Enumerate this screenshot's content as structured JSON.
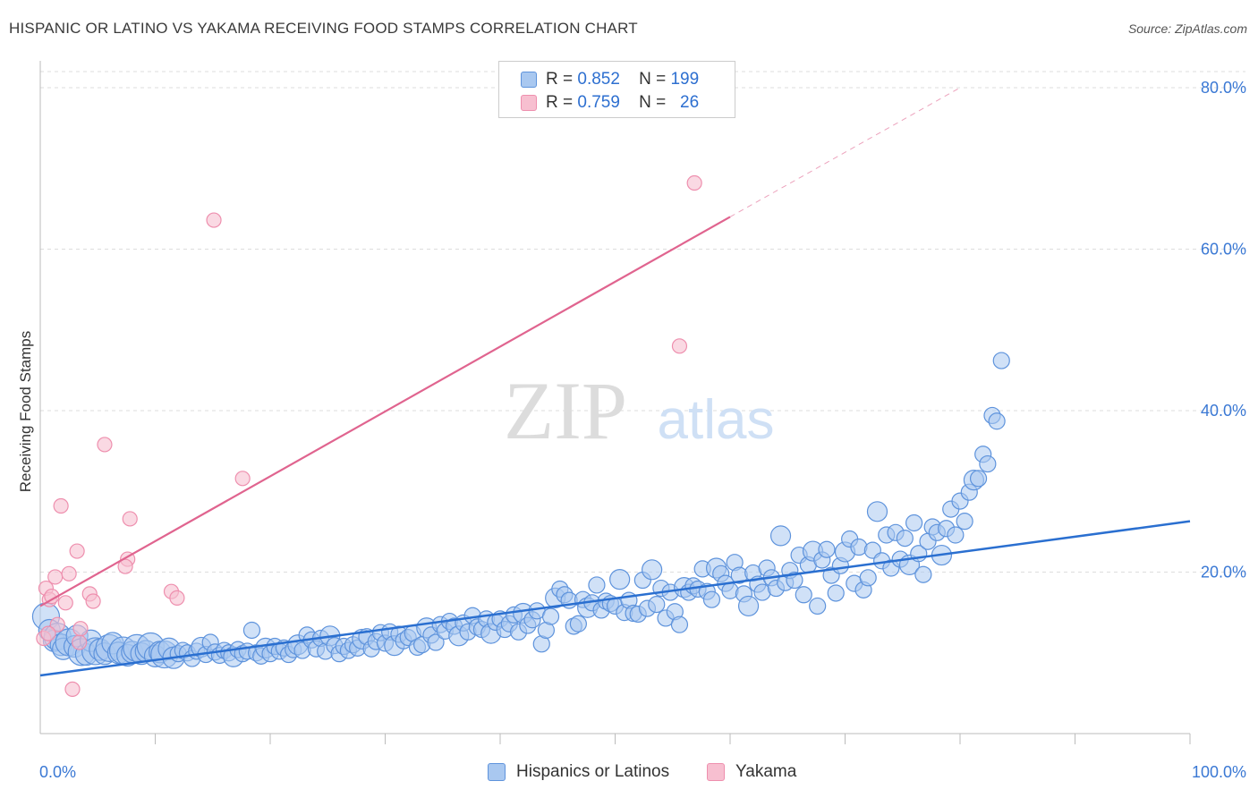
{
  "title": "HISPANIC OR LATINO VS YAKAMA RECEIVING FOOD STAMPS CORRELATION CHART",
  "source": "Source: ZipAtlas.com",
  "watermark": {
    "zip": "ZIP",
    "atlas": "atlas"
  },
  "legend_top": [
    {
      "r_label": "R =",
      "r_value": "0.852",
      "n_label": "N =",
      "n_value": "199"
    },
    {
      "r_label": "R =",
      "r_value": "0.759",
      "n_label": "N =",
      "n_value": "26"
    }
  ],
  "legend_bottom": [
    {
      "label": "Hispanics or Latinos"
    },
    {
      "label": "Yakama"
    }
  ],
  "colors": {
    "blue_fill": "#a9c8f0",
    "blue_stroke": "#5e93dc",
    "blue_line": "#2a6fd0",
    "pink_fill": "#f7bfd0",
    "pink_stroke": "#ee8fae",
    "pink_line": "#e0648f",
    "axis_text": "#3a78d4",
    "grid": "#dddddd"
  },
  "chart_data": {
    "type": "scatter",
    "title": "HISPANIC OR LATINO VS YAKAMA RECEIVING FOOD STAMPS CORRELATION CHART",
    "xlabel": "",
    "ylabel": "Receiving Food Stamps",
    "xlim": [
      0,
      100
    ],
    "ylim": [
      0,
      82
    ],
    "x_tick_labels": [
      "0.0%",
      "100.0%"
    ],
    "y_ticks": [
      20,
      40,
      60,
      80
    ],
    "y_tick_labels": [
      "20.0%",
      "40.0%",
      "60.0%",
      "80.0%"
    ],
    "grid": true,
    "legend_placement": "top-center",
    "series": [
      {
        "name": "Hispanics or Latinos",
        "color": "#5e93dc",
        "trend": {
          "x": [
            0,
            100
          ],
          "y": [
            7.2,
            26.3
          ]
        },
        "points": [
          [
            0.5,
            14.5
          ],
          [
            0.8,
            12.8
          ],
          [
            1.2,
            11.5
          ],
          [
            1.5,
            12.0
          ],
          [
            1.8,
            11.0
          ],
          [
            2.0,
            10.5
          ],
          [
            2.5,
            11.3
          ],
          [
            3.0,
            10.8
          ],
          [
            3.2,
            12.1
          ],
          [
            3.6,
            10.1
          ],
          [
            4.0,
            9.8
          ],
          [
            4.4,
            11.5
          ],
          [
            4.8,
            10.2
          ],
          [
            5.2,
            10.4
          ],
          [
            5.6,
            9.9
          ],
          [
            6.0,
            10.6
          ],
          [
            6.3,
            11.2
          ],
          [
            6.8,
            10.0
          ],
          [
            7.2,
            10.3
          ],
          [
            7.6,
            9.7
          ],
          [
            8.0,
            10.1
          ],
          [
            8.4,
            10.6
          ],
          [
            8.8,
            9.9
          ],
          [
            9.2,
            10.2
          ],
          [
            9.6,
            10.8
          ],
          [
            10.0,
            9.6
          ],
          [
            10.4,
            10.1
          ],
          [
            10.8,
            9.8
          ],
          [
            11.2,
            10.5
          ],
          [
            11.6,
            9.4
          ],
          [
            12.0,
            9.9
          ],
          [
            12.4,
            10.3
          ],
          [
            12.8,
            10.0
          ],
          [
            13.2,
            9.3
          ],
          [
            13.6,
            10.2
          ],
          [
            14.0,
            10.7
          ],
          [
            14.4,
            9.8
          ],
          [
            14.8,
            11.3
          ],
          [
            15.2,
            10.1
          ],
          [
            15.6,
            9.7
          ],
          [
            16.0,
            10.3
          ],
          [
            16.4,
            10.0
          ],
          [
            16.8,
            9.5
          ],
          [
            17.2,
            10.4
          ],
          [
            17.6,
            9.9
          ],
          [
            18.0,
            10.2
          ],
          [
            18.4,
            12.8
          ],
          [
            18.8,
            10.0
          ],
          [
            19.2,
            9.6
          ],
          [
            19.6,
            10.6
          ],
          [
            20.0,
            9.9
          ],
          [
            20.4,
            10.8
          ],
          [
            20.8,
            10.2
          ],
          [
            21.2,
            10.6
          ],
          [
            21.6,
            9.8
          ],
          [
            22.0,
            10.4
          ],
          [
            22.4,
            11.0
          ],
          [
            22.8,
            10.3
          ],
          [
            23.2,
            12.2
          ],
          [
            23.6,
            11.6
          ],
          [
            24.0,
            10.5
          ],
          [
            24.4,
            11.8
          ],
          [
            24.8,
            10.2
          ],
          [
            25.2,
            12.1
          ],
          [
            25.6,
            10.9
          ],
          [
            26.0,
            9.9
          ],
          [
            26.4,
            10.8
          ],
          [
            26.8,
            10.3
          ],
          [
            27.2,
            11.0
          ],
          [
            27.6,
            10.6
          ],
          [
            28.0,
            11.7
          ],
          [
            28.4,
            12.0
          ],
          [
            28.8,
            10.5
          ],
          [
            29.2,
            11.4
          ],
          [
            29.6,
            12.5
          ],
          [
            30.0,
            11.2
          ],
          [
            30.4,
            12.6
          ],
          [
            30.8,
            10.9
          ],
          [
            31.2,
            12.3
          ],
          [
            31.6,
            11.5
          ],
          [
            32.0,
            11.9
          ],
          [
            32.4,
            12.4
          ],
          [
            32.8,
            10.7
          ],
          [
            33.2,
            11.0
          ],
          [
            33.6,
            13.1
          ],
          [
            34.0,
            12.2
          ],
          [
            34.4,
            11.3
          ],
          [
            34.8,
            13.5
          ],
          [
            35.2,
            12.7
          ],
          [
            35.6,
            13.9
          ],
          [
            36.0,
            13.3
          ],
          [
            36.4,
            12.1
          ],
          [
            36.8,
            13.7
          ],
          [
            37.2,
            12.6
          ],
          [
            37.6,
            14.6
          ],
          [
            38.0,
            13.2
          ],
          [
            38.4,
            12.9
          ],
          [
            38.8,
            14.2
          ],
          [
            39.2,
            12.4
          ],
          [
            39.6,
            13.8
          ],
          [
            40.0,
            14.2
          ],
          [
            40.4,
            12.9
          ],
          [
            40.8,
            13.6
          ],
          [
            41.2,
            14.7
          ],
          [
            41.6,
            12.6
          ],
          [
            42.0,
            14.9
          ],
          [
            42.4,
            13.4
          ],
          [
            42.8,
            14.1
          ],
          [
            43.2,
            15.2
          ],
          [
            43.6,
            11.1
          ],
          [
            44.0,
            12.8
          ],
          [
            44.4,
            14.5
          ],
          [
            44.8,
            16.8
          ],
          [
            45.2,
            17.9
          ],
          [
            45.6,
            17.2
          ],
          [
            46.0,
            16.5
          ],
          [
            46.4,
            13.3
          ],
          [
            46.8,
            13.6
          ],
          [
            47.2,
            16.6
          ],
          [
            47.6,
            15.6
          ],
          [
            48.0,
            16.2
          ],
          [
            48.4,
            18.4
          ],
          [
            48.8,
            15.3
          ],
          [
            49.2,
            16.4
          ],
          [
            49.6,
            16.1
          ],
          [
            50.0,
            15.8
          ],
          [
            50.4,
            19.1
          ],
          [
            50.8,
            15.0
          ],
          [
            51.2,
            16.5
          ],
          [
            51.6,
            14.9
          ],
          [
            52.0,
            14.8
          ],
          [
            52.4,
            19.0
          ],
          [
            52.8,
            15.5
          ],
          [
            53.2,
            20.3
          ],
          [
            53.6,
            16.0
          ],
          [
            54.0,
            18.0
          ],
          [
            54.4,
            14.3
          ],
          [
            54.8,
            17.5
          ],
          [
            55.2,
            15.1
          ],
          [
            55.6,
            13.5
          ],
          [
            56.0,
            18.1
          ],
          [
            56.4,
            17.5
          ],
          [
            56.8,
            18.3
          ],
          [
            57.2,
            17.9
          ],
          [
            57.6,
            20.4
          ],
          [
            58.0,
            17.6
          ],
          [
            58.4,
            16.6
          ],
          [
            58.8,
            20.5
          ],
          [
            59.2,
            19.8
          ],
          [
            59.6,
            18.6
          ],
          [
            60.0,
            17.7
          ],
          [
            60.4,
            21.2
          ],
          [
            60.8,
            19.6
          ],
          [
            61.2,
            17.3
          ],
          [
            61.6,
            15.8
          ],
          [
            62.0,
            19.9
          ],
          [
            62.4,
            18.5
          ],
          [
            62.8,
            17.5
          ],
          [
            63.2,
            20.5
          ],
          [
            63.6,
            19.3
          ],
          [
            64.0,
            18.0
          ],
          [
            64.4,
            24.5
          ],
          [
            64.8,
            18.7
          ],
          [
            65.2,
            20.2
          ],
          [
            65.6,
            19.0
          ],
          [
            66.0,
            22.1
          ],
          [
            66.4,
            17.2
          ],
          [
            66.8,
            20.9
          ],
          [
            67.2,
            22.6
          ],
          [
            67.6,
            15.8
          ],
          [
            68.0,
            21.5
          ],
          [
            68.4,
            22.8
          ],
          [
            68.8,
            19.6
          ],
          [
            69.2,
            17.4
          ],
          [
            69.6,
            20.8
          ],
          [
            70.0,
            22.5
          ],
          [
            70.4,
            24.1
          ],
          [
            70.8,
            18.6
          ],
          [
            71.2,
            23.1
          ],
          [
            71.6,
            17.8
          ],
          [
            72.0,
            19.3
          ],
          [
            72.4,
            22.7
          ],
          [
            72.8,
            27.5
          ],
          [
            73.2,
            21.4
          ],
          [
            73.6,
            24.6
          ],
          [
            74.0,
            20.5
          ],
          [
            74.4,
            24.9
          ],
          [
            74.8,
            21.6
          ],
          [
            75.2,
            24.2
          ],
          [
            75.6,
            20.9
          ],
          [
            76.0,
            26.1
          ],
          [
            76.4,
            22.3
          ],
          [
            76.8,
            19.7
          ],
          [
            77.2,
            23.8
          ],
          [
            77.6,
            25.6
          ],
          [
            78.0,
            24.9
          ],
          [
            78.4,
            22.1
          ],
          [
            78.8,
            25.4
          ],
          [
            79.2,
            27.8
          ],
          [
            79.6,
            24.6
          ],
          [
            80.0,
            28.8
          ],
          [
            80.4,
            26.3
          ],
          [
            80.8,
            29.9
          ],
          [
            81.2,
            31.4
          ],
          [
            81.6,
            31.6
          ],
          [
            82.0,
            34.6
          ],
          [
            82.4,
            33.4
          ],
          [
            82.8,
            39.4
          ],
          [
            83.2,
            38.7
          ],
          [
            83.6,
            46.2
          ]
        ]
      },
      {
        "name": "Yakama",
        "color": "#ee8fae",
        "trend": {
          "x": [
            0,
            60
          ],
          "y": [
            15.8,
            64.0
          ]
        },
        "trend_dashed": {
          "x": [
            60,
            80
          ],
          "y": [
            64.0,
            80.0
          ]
        },
        "points": [
          [
            0.3,
            11.8
          ],
          [
            0.5,
            18.0
          ],
          [
            0.8,
            16.6
          ],
          [
            1.0,
            17.0
          ],
          [
            1.3,
            19.4
          ],
          [
            1.8,
            28.2
          ],
          [
            2.2,
            16.2
          ],
          [
            2.5,
            19.8
          ],
          [
            2.8,
            5.5
          ],
          [
            3.2,
            22.6
          ],
          [
            3.4,
            11.3
          ],
          [
            3.5,
            13.0
          ],
          [
            4.3,
            17.3
          ],
          [
            4.6,
            16.4
          ],
          [
            5.6,
            35.8
          ],
          [
            7.6,
            21.6
          ],
          [
            7.8,
            26.6
          ],
          [
            7.4,
            20.7
          ],
          [
            11.4,
            17.6
          ],
          [
            11.9,
            16.8
          ],
          [
            15.1,
            63.6
          ],
          [
            17.6,
            31.6
          ],
          [
            55.6,
            48.0
          ],
          [
            56.9,
            68.2
          ],
          [
            1.5,
            13.5
          ],
          [
            0.7,
            12.4
          ]
        ]
      }
    ]
  }
}
